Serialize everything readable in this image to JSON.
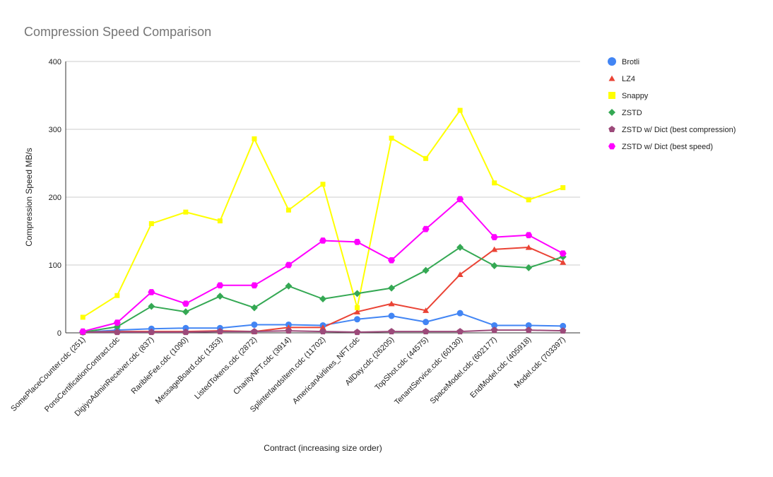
{
  "chart_data": {
    "type": "line",
    "title": "Compression Speed Comparison",
    "xlabel": "Contract (increasing size order)",
    "ylabel": "Compression Speed MB/s",
    "ylim": [
      0,
      400
    ],
    "yticks": [
      0,
      100,
      200,
      300,
      400
    ],
    "grid": true,
    "legend_position": "right",
    "categories": [
      "SomePlaceCounter.cdc (251)",
      "PonsCertificationContract.cdc",
      "DigiyoAdminReceiver.cdc (837)",
      "RaribleFee.cdc (1090)",
      "MessageBoard.cdc (1353)",
      "ListedTokens.cdc (2872)",
      "CharityNFT.cdc (3914)",
      "SplinterlandsItem.cdc (11702)",
      "AmericanAirlines_NFT.cdc",
      "AllDay.cdc (26205)",
      "TopShot.cdc (44575)",
      "TenantService.cdc (60130)",
      "SpaceModel.cdc (602177)",
      "EndModel.cdc (405918)",
      "Model.cdc (703397)"
    ],
    "series": [
      {
        "name": "Brotli",
        "color": "#4285f4",
        "marker": "circle",
        "values": [
          1,
          4,
          6,
          7,
          7,
          12,
          12,
          11,
          20,
          25,
          16,
          29,
          11,
          11,
          10
        ]
      },
      {
        "name": "LZ4",
        "color": "#ea4335",
        "marker": "triangle",
        "values": [
          1,
          2,
          2,
          2,
          3,
          2,
          8,
          8,
          31,
          43,
          33,
          86,
          123,
          126,
          104
        ]
      },
      {
        "name": "Snappy",
        "color": "#ffff00",
        "marker": "square",
        "values": [
          23,
          55,
          161,
          178,
          165,
          286,
          181,
          219,
          37,
          287,
          257,
          328,
          221,
          196,
          214
        ]
      },
      {
        "name": "ZSTD",
        "color": "#34a853",
        "marker": "diamond",
        "values": [
          1,
          9,
          39,
          31,
          54,
          37,
          69,
          50,
          58,
          66,
          92,
          126,
          99,
          96,
          112
        ]
      },
      {
        "name": "ZSTD w/ Dict (best compression)",
        "color": "#9c4a7a",
        "marker": "pentagon",
        "values": [
          1,
          1,
          1,
          1,
          2,
          2,
          3,
          2,
          1,
          2,
          2,
          2,
          4,
          4,
          3
        ]
      },
      {
        "name": "ZSTD w/ Dict (best speed)",
        "color": "#ff00ff",
        "marker": "hexagon",
        "values": [
          2,
          15,
          60,
          43,
          70,
          70,
          100,
          136,
          134,
          107,
          153,
          197,
          141,
          144,
          117
        ]
      }
    ]
  }
}
